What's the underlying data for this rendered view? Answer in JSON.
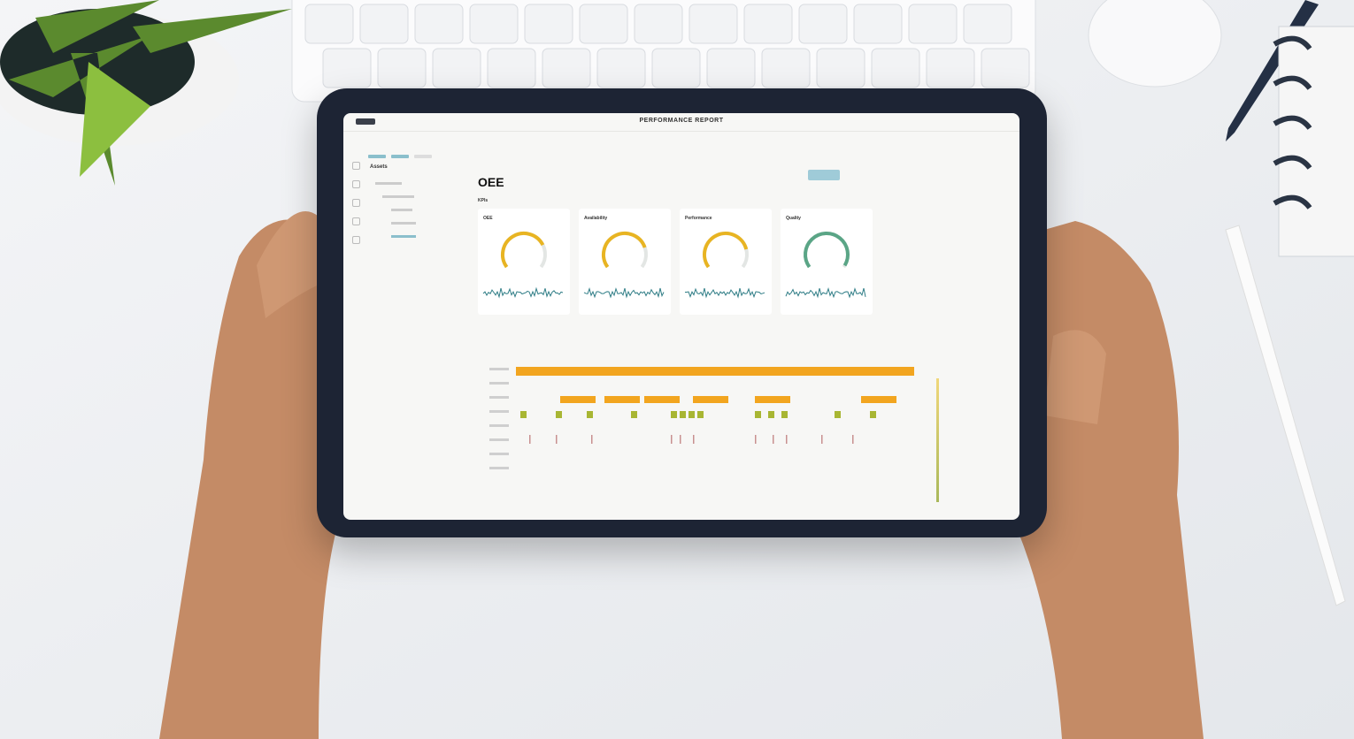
{
  "screen": {
    "app_title": "PERFORMANCE REPORT",
    "sidebar": {
      "title": "Assets"
    },
    "page_title": "OEE",
    "section_label": "KPIs",
    "kpi_cards": [
      {
        "label": "OEE",
        "gauge_fraction": 0.75,
        "color": "#e8b422"
      },
      {
        "label": "Availability",
        "gauge_fraction": 0.78,
        "color": "#e8b422"
      },
      {
        "label": "Performance",
        "gauge_fraction": 0.8,
        "color": "#e8b422"
      },
      {
        "label": "Quality",
        "gauge_fraction": 0.98,
        "color": "#5aa586"
      }
    ],
    "colors": {
      "accent": "#8bbfcc",
      "timeline_orange": "#f2a51f",
      "timeline_green": "#a8b633",
      "bezel": "#1d2434",
      "sparkline": "#2f7d86"
    }
  }
}
